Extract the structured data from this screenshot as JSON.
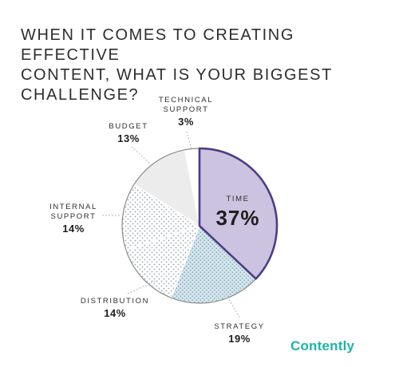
{
  "title_lines": [
    "WHEN IT COMES TO CREATING EFFECTIVE",
    "CONTENT, WHAT IS YOUR BIGGEST",
    "CHALLENGE?"
  ],
  "brand": "Contently",
  "colors": {
    "time_fill": "#cbc3df",
    "time_border": "#4f3b86",
    "strategy_fill": "#cfe6ef",
    "dots": "#9aa3a8",
    "budget_fill": "#ececec",
    "brand": "#1bb6a5"
  },
  "chart_data": {
    "type": "pie",
    "title": "WHEN IT COMES TO CREATING EFFECTIVE CONTENT, WHAT IS YOUR BIGGEST CHALLENGE?",
    "slices": [
      {
        "label_lines": [
          "TIME"
        ],
        "value": 37,
        "display": "37%"
      },
      {
        "label_lines": [
          "STRATEGY"
        ],
        "value": 19,
        "display": "19%"
      },
      {
        "label_lines": [
          "DISTRIBUTION"
        ],
        "value": 14,
        "display": "14%"
      },
      {
        "label_lines": [
          "INTERNAL",
          "SUPPORT"
        ],
        "value": 14,
        "display": "14%"
      },
      {
        "label_lines": [
          "BUDGET"
        ],
        "value": 13,
        "display": "13%"
      },
      {
        "label_lines": [
          "TECHNICAL",
          "SUPPORT"
        ],
        "value": 3,
        "display": "3%"
      }
    ]
  }
}
